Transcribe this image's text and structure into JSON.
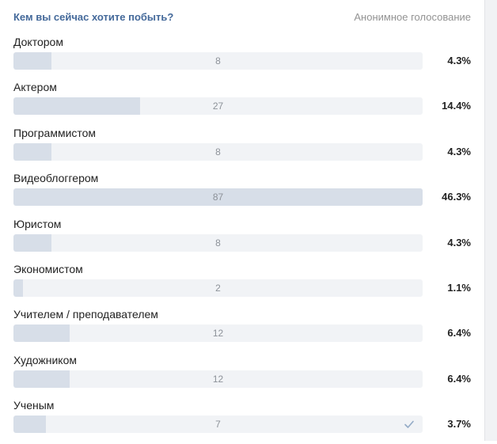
{
  "poll": {
    "question": "Кем вы сейчас хотите побыть?",
    "anonymous_label": "Анонимное голосование",
    "options": [
      {
        "label": "Доктором",
        "votes": "8",
        "percent": "4.3%",
        "fill": 0.092
      },
      {
        "label": "Актером",
        "votes": "27",
        "percent": "14.4%",
        "fill": 0.31
      },
      {
        "label": "Программистом",
        "votes": "8",
        "percent": "4.3%",
        "fill": 0.092
      },
      {
        "label": "Видеоблоггером",
        "votes": "87",
        "percent": "46.3%",
        "fill": 1.0
      },
      {
        "label": "Юристом",
        "votes": "8",
        "percent": "4.3%",
        "fill": 0.092
      },
      {
        "label": "Экономистом",
        "votes": "2",
        "percent": "1.1%",
        "fill": 0.023
      },
      {
        "label": "Учителем / преподавателем",
        "votes": "12",
        "percent": "6.4%",
        "fill": 0.138
      },
      {
        "label": "Художником",
        "votes": "12",
        "percent": "6.4%",
        "fill": 0.138
      },
      {
        "label": "Ученым",
        "votes": "7",
        "percent": "3.7%",
        "fill": 0.08,
        "selected": true,
        "icon": "check-icon"
      }
    ]
  },
  "colors": {
    "question": "#44699a",
    "bar_track": "#f1f3f6",
    "bar_fill": "#d7dee8",
    "check": "#93aac6"
  }
}
